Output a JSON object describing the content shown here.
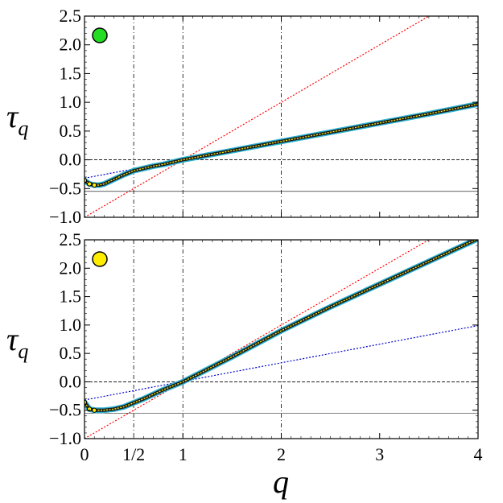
{
  "chart_data": [
    {
      "type": "line",
      "marker_color": "#22dd22",
      "ylabel": "τ",
      "ylabel_sub": "q",
      "xlim": [
        0,
        4
      ],
      "ylim": [
        -1.0,
        2.5
      ],
      "yticks": [
        "2.5",
        "2.0",
        "1.5",
        "1.0",
        "0.5",
        "0.0",
        "−0.5",
        "−1.0"
      ],
      "ytick_values": [
        2.5,
        2.0,
        1.5,
        1.0,
        0.5,
        0.0,
        -0.5,
        -1.0
      ],
      "vlines": [
        0.5,
        1,
        2
      ],
      "hline_dashed": 0.0,
      "hline_solid": -0.55,
      "series": [
        {
          "color": "#ff0000",
          "style": "dotted",
          "x": [
            0,
            4
          ],
          "y": [
            -1.0,
            3.0
          ]
        },
        {
          "color": "#0000cc",
          "style": "dotted",
          "x": [
            0,
            4
          ],
          "y": [
            -0.32,
            0.97
          ]
        },
        {
          "color": "#1a1a1a",
          "style": "thick",
          "x": [
            0.0,
            0.05,
            0.1,
            0.15,
            0.2,
            0.25,
            0.3,
            0.4,
            0.5,
            0.6,
            0.7,
            0.8,
            0.9,
            1.0,
            1.25,
            1.5,
            2.0,
            2.5,
            3.0,
            3.5,
            4.0
          ],
          "y": [
            -0.36,
            -0.42,
            -0.44,
            -0.44,
            -0.42,
            -0.38,
            -0.34,
            -0.26,
            -0.19,
            -0.15,
            -0.11,
            -0.08,
            -0.04,
            0.0,
            0.08,
            0.16,
            0.32,
            0.48,
            0.64,
            0.8,
            0.97
          ]
        }
      ]
    },
    {
      "type": "line",
      "marker_color": "#ffee00",
      "ylabel": "τ",
      "ylabel_sub": "q",
      "xlabel": "q",
      "xlim": [
        0,
        4
      ],
      "ylim": [
        -1.0,
        2.5
      ],
      "xticks": [
        "0",
        "1/2",
        "1",
        "2",
        "3",
        "4"
      ],
      "xtick_values": [
        0,
        0.5,
        1,
        2,
        3,
        4
      ],
      "yticks": [
        "2.5",
        "2.0",
        "1.5",
        "1.0",
        "0.5",
        "0.0",
        "−0.5",
        "−1.0"
      ],
      "ytick_values": [
        2.5,
        2.0,
        1.5,
        1.0,
        0.5,
        0.0,
        -0.5,
        -1.0
      ],
      "vlines": [
        0.5,
        1,
        2
      ],
      "hline_dashed": 0.0,
      "hline_solid": -0.55,
      "series": [
        {
          "color": "#ff0000",
          "style": "dotted",
          "x": [
            0,
            4
          ],
          "y": [
            -1.0,
            3.0
          ]
        },
        {
          "color": "#0000cc",
          "style": "dotted",
          "x": [
            0,
            4
          ],
          "y": [
            -0.32,
            0.99
          ]
        },
        {
          "color": "#1a1a1a",
          "style": "thick",
          "x": [
            0.0,
            0.05,
            0.1,
            0.2,
            0.3,
            0.4,
            0.5,
            0.6,
            0.7,
            0.8,
            0.9,
            1.0,
            1.25,
            1.5,
            2.0,
            2.5,
            3.0,
            3.5,
            4.0
          ],
          "y": [
            -0.36,
            -0.48,
            -0.5,
            -0.5,
            -0.48,
            -0.44,
            -0.37,
            -0.3,
            -0.22,
            -0.14,
            -0.07,
            0.0,
            0.22,
            0.44,
            0.9,
            1.32,
            1.72,
            2.12,
            2.52
          ]
        }
      ]
    }
  ]
}
